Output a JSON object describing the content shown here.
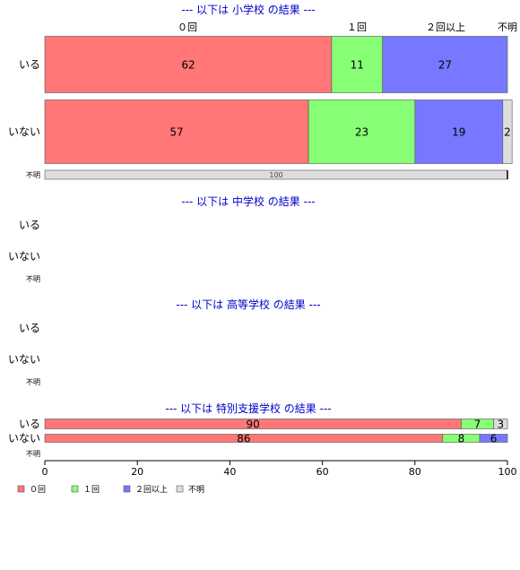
{
  "chart_data": {
    "type": "bar",
    "orientation": "horizontal",
    "stacked": true,
    "categories": [
      "０回",
      "１回",
      "２回以上",
      "不明"
    ],
    "colors": [
      "#ff7777",
      "#88ff77",
      "#7777ff",
      "#dddddd"
    ],
    "xlim": [
      0,
      100
    ],
    "xticks": [
      "0",
      "20",
      "40",
      "60",
      "80",
      "100"
    ],
    "sections": [
      {
        "title": "--- 以下は 小学校 の結果 ---",
        "rows": [
          {
            "label": "いる",
            "values": [
              62,
              11,
              27,
              0
            ]
          },
          {
            "label": "いない",
            "values": [
              57,
              23,
              19,
              2
            ]
          },
          {
            "label": "不明",
            "values": [
              0,
              0,
              0,
              100
            ]
          }
        ]
      },
      {
        "title": "--- 以下は 中学校 の結果 ---",
        "rows": [
          {
            "label": "いる",
            "values": []
          },
          {
            "label": "いない",
            "values": []
          },
          {
            "label": "不明",
            "values": []
          }
        ]
      },
      {
        "title": "--- 以下は 高等学校 の結果 ---",
        "rows": [
          {
            "label": "いる",
            "values": []
          },
          {
            "label": "いない",
            "values": []
          },
          {
            "label": "不明",
            "values": []
          }
        ]
      },
      {
        "title": "--- 以下は 特別支援学校 の結果 ---",
        "rows": [
          {
            "label": "いる",
            "values": [
              90,
              7,
              0,
              3
            ]
          },
          {
            "label": "いない",
            "values": [
              86,
              8,
              6,
              0
            ]
          },
          {
            "label": "不明",
            "values": []
          }
        ]
      }
    ],
    "legend": [
      "０回",
      "１回",
      "２回以上",
      "不明"
    ],
    "legend_position": "bottom-left"
  }
}
